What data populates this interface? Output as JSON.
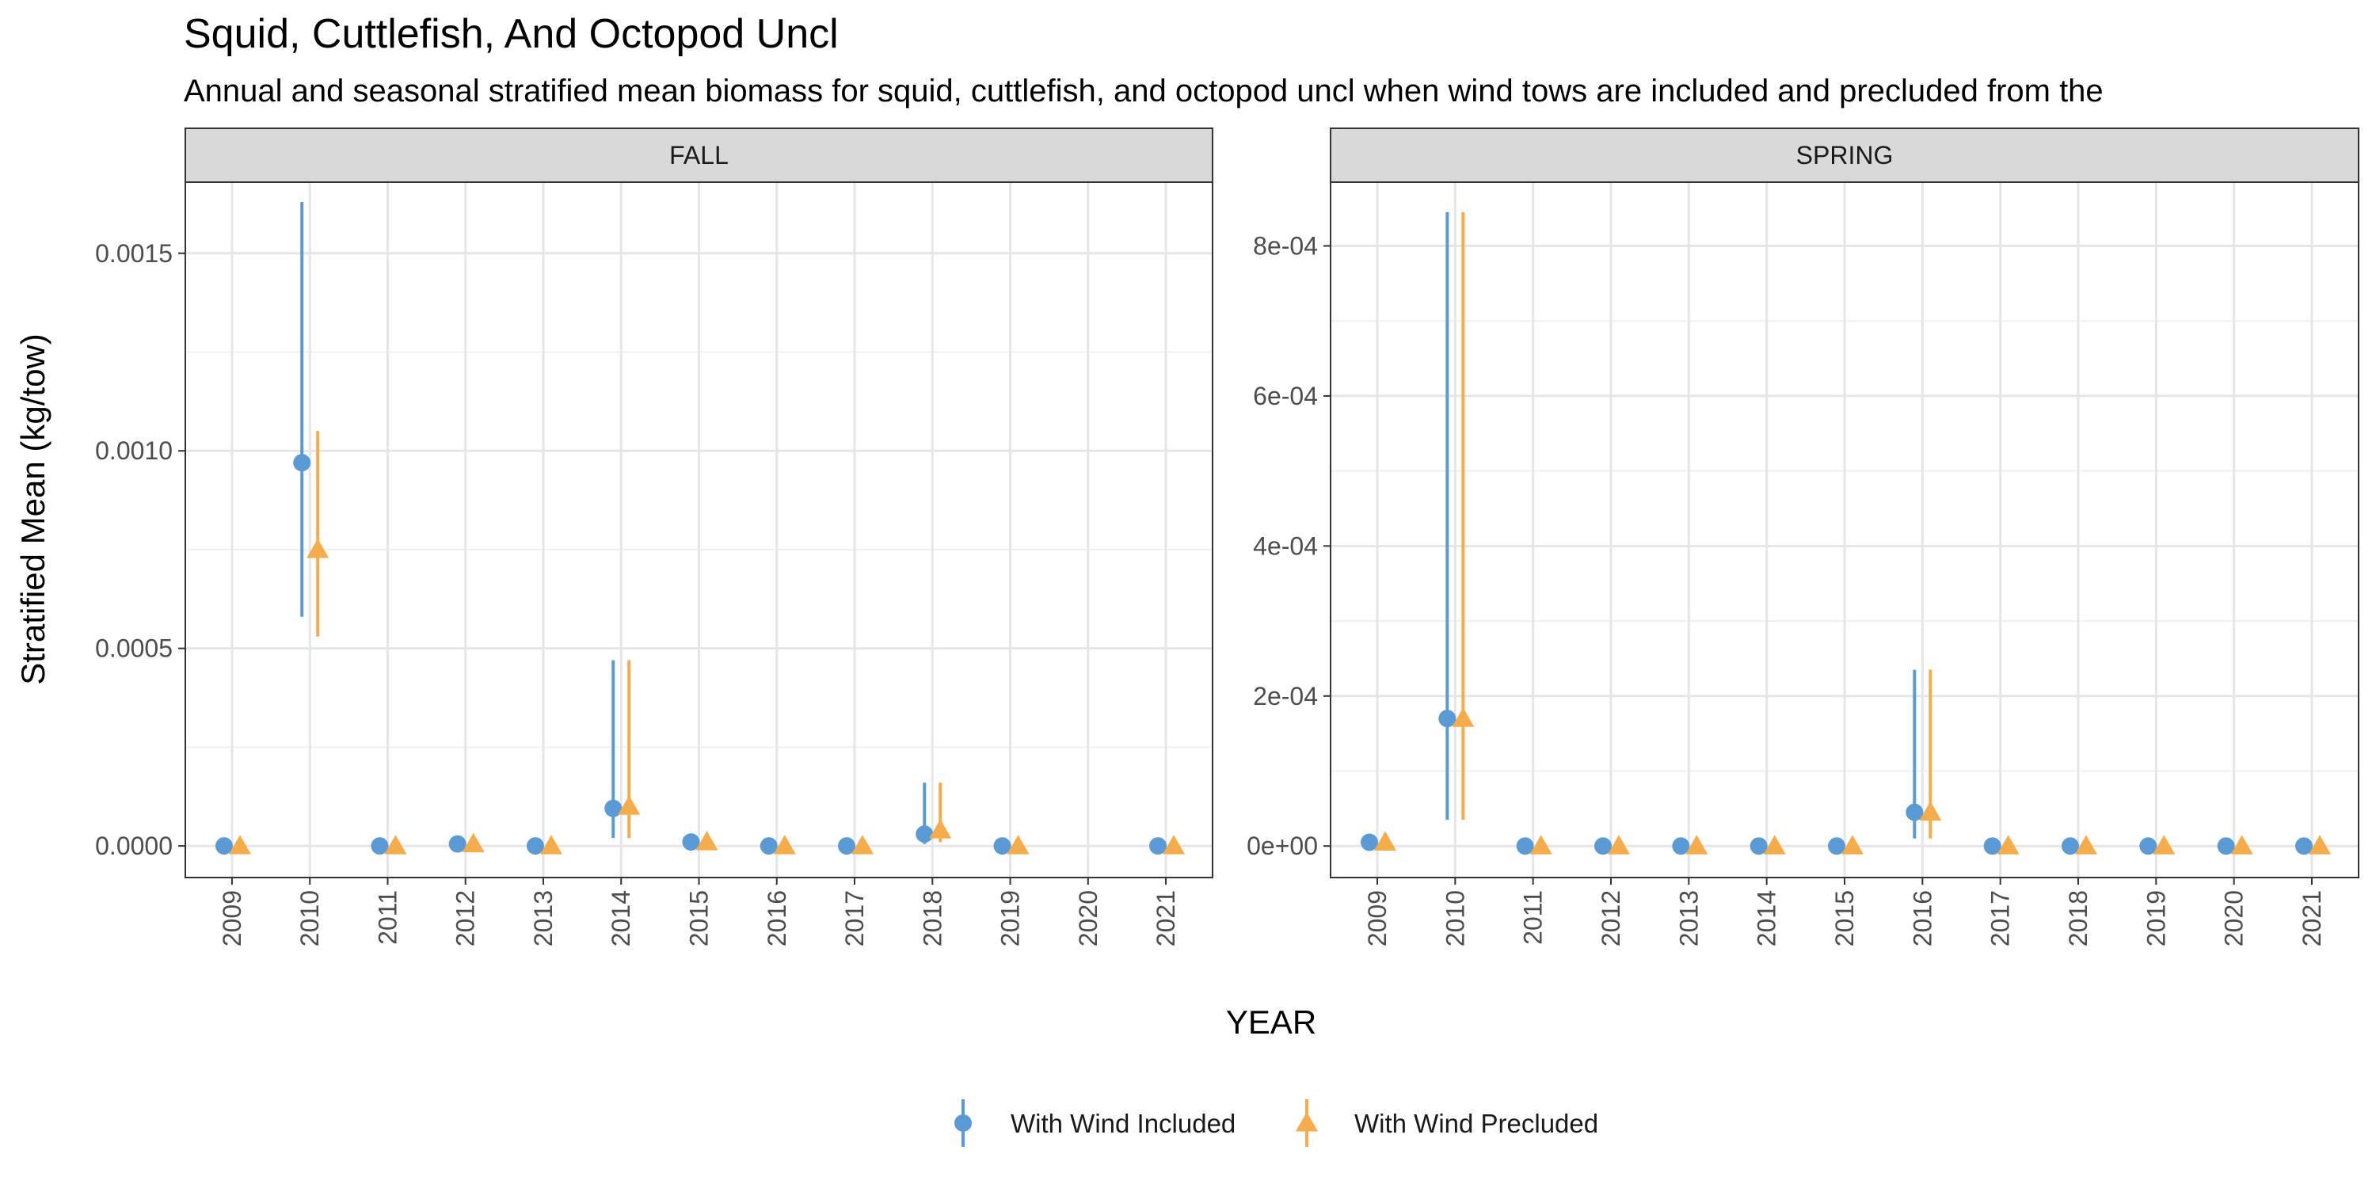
{
  "chart_data": {
    "type": "scatter",
    "title": "Squid, Cuttlefish, And Octopod Uncl",
    "subtitle": "Annual and seasonal stratified mean biomass for squid, cuttlefish, and octopod uncl when wind tows are included and precluded from the",
    "xlabel": "YEAR",
    "ylabel": "Stratified Mean (kg/tow)",
    "x": [
      "2009",
      "2010",
      "2011",
      "2012",
      "2013",
      "2014",
      "2015",
      "2016",
      "2017",
      "2018",
      "2019",
      "2020",
      "2021"
    ],
    "grid": true,
    "legend": {
      "position": "bottom",
      "entries": [
        "With Wind Included",
        "With Wind Precluded"
      ]
    },
    "colors": {
      "included": "#5b9bd5",
      "precluded": "#f5ad4c"
    },
    "panels": [
      {
        "name": "FALL",
        "ylim": [
          -8e-05,
          0.00168
        ],
        "yticks": [
          0,
          0.0005,
          0.001,
          0.0015
        ],
        "ytick_labels": [
          "0.0000",
          "0.0005",
          "0.0010",
          "0.0015"
        ],
        "series": [
          {
            "name": "With Wind Included",
            "values": [
              0.0,
              0.00097,
              0.0,
              5e-06,
              0.0,
              9.5e-05,
              1e-05,
              0.0,
              0.0,
              3e-05,
              0.0,
              null,
              0.0
            ],
            "lower": [
              0.0,
              0.00058,
              0.0,
              0.0,
              0.0,
              2e-05,
              0.0,
              0.0,
              0.0,
              5e-06,
              0.0,
              null,
              0.0
            ],
            "upper": [
              0.0,
              0.00163,
              0.0,
              1e-05,
              0.0,
              0.00047,
              2e-05,
              0.0,
              0.0,
              0.00016,
              0.0,
              null,
              0.0
            ]
          },
          {
            "name": "With Wind Precluded",
            "values": [
              0.0,
              0.00075,
              0.0,
              5e-06,
              0.0,
              0.0001,
              1e-05,
              0.0,
              0.0,
              4e-05,
              0.0,
              null,
              0.0
            ],
            "lower": [
              0.0,
              0.00053,
              0.0,
              0.0,
              0.0,
              2e-05,
              0.0,
              0.0,
              0.0,
              1e-05,
              0.0,
              null,
              0.0
            ],
            "upper": [
              0.0,
              0.00105,
              0.0,
              1e-05,
              0.0,
              0.00047,
              2e-05,
              0.0,
              0.0,
              0.00016,
              0.0,
              null,
              0.0
            ]
          }
        ]
      },
      {
        "name": "SPRING",
        "ylim": [
          -4.2e-05,
          0.000885
        ],
        "yticks": [
          0,
          0.0002,
          0.0004,
          0.0006,
          0.0008
        ],
        "ytick_labels": [
          "0e+00",
          "2e-04",
          "4e-04",
          "6e-04",
          "8e-04"
        ],
        "series": [
          {
            "name": "With Wind Included",
            "values": [
              5e-06,
              0.00017,
              0.0,
              0.0,
              0.0,
              0.0,
              0.0,
              4.5e-05,
              0.0,
              0.0,
              0.0,
              0.0,
              0.0
            ],
            "lower": [
              5e-06,
              3.5e-05,
              0.0,
              0.0,
              0.0,
              0.0,
              0.0,
              1e-05,
              0.0,
              0.0,
              0.0,
              0.0,
              0.0
            ],
            "upper": [
              5e-06,
              0.000845,
              0.0,
              0.0,
              0.0,
              0.0,
              0.0,
              0.000235,
              0.0,
              0.0,
              0.0,
              0.0,
              0.0
            ]
          },
          {
            "name": "With Wind Precluded",
            "values": [
              5e-06,
              0.00017,
              0.0,
              0.0,
              0.0,
              0.0,
              0.0,
              4.5e-05,
              0.0,
              0.0,
              0.0,
              0.0,
              0.0
            ],
            "lower": [
              5e-06,
              3.5e-05,
              0.0,
              0.0,
              0.0,
              0.0,
              0.0,
              1e-05,
              0.0,
              0.0,
              0.0,
              0.0,
              0.0
            ],
            "upper": [
              5e-06,
              0.000845,
              0.0,
              0.0,
              0.0,
              0.0,
              0.0,
              0.000235,
              0.0,
              0.0,
              0.0,
              0.0,
              0.0
            ]
          }
        ]
      }
    ]
  }
}
